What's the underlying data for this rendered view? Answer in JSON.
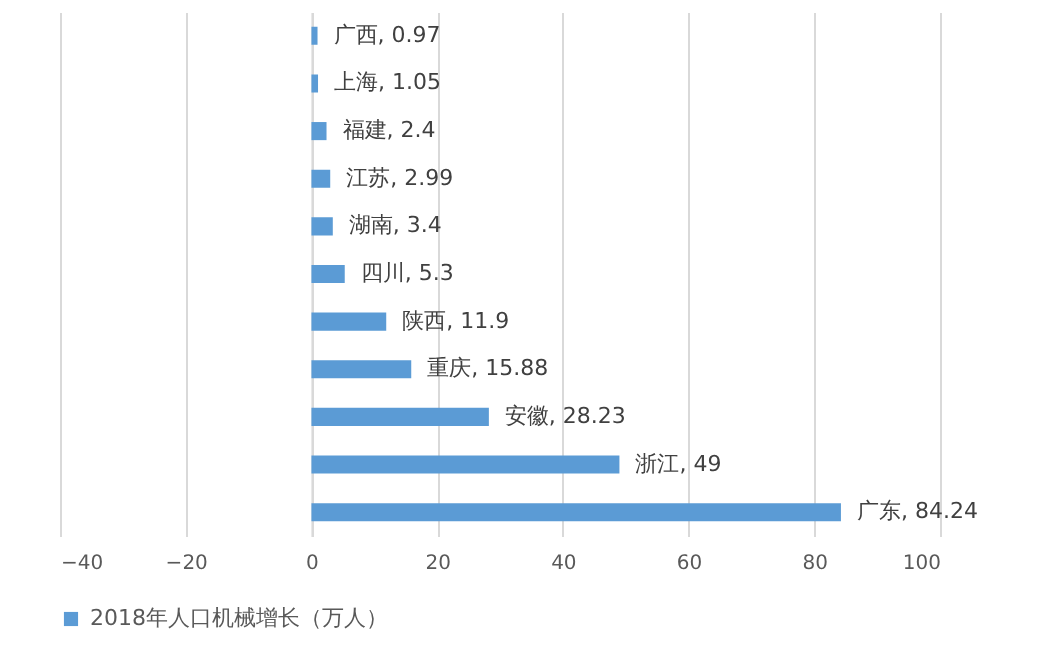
{
  "chart_data": {
    "type": "bar",
    "orientation": "horizontal",
    "categories": [
      null,
      null,
      null,
      null,
      null,
      null,
      null,
      null,
      null,
      null,
      null
    ],
    "series": [
      {
        "name": "2018年人口机械增长（万人）",
        "color": "#5b9bd5",
        "values": [
          0.97,
          1.05,
          2.4,
          2.99,
          3.4,
          5.3,
          11.9,
          15.88,
          28.23,
          49,
          84.24
        ]
      }
    ],
    "value_labels": [
      "广西, 0.97",
      "上海, 1.05",
      "福建, 2.4",
      "江苏, 2.99",
      "湖南, 3.4",
      "四川, 5.3",
      "陕西, 11.9",
      "重庆, 15.88",
      "安徽, 28.23",
      "浙江, 49",
      "广东, 84.24"
    ],
    "xlim": [
      -40,
      100
    ],
    "xticks": [
      -40,
      -20,
      0,
      20,
      40,
      60,
      80,
      100
    ],
    "grid": "x",
    "legend": "bottom",
    "tick_labels": "x"
  }
}
